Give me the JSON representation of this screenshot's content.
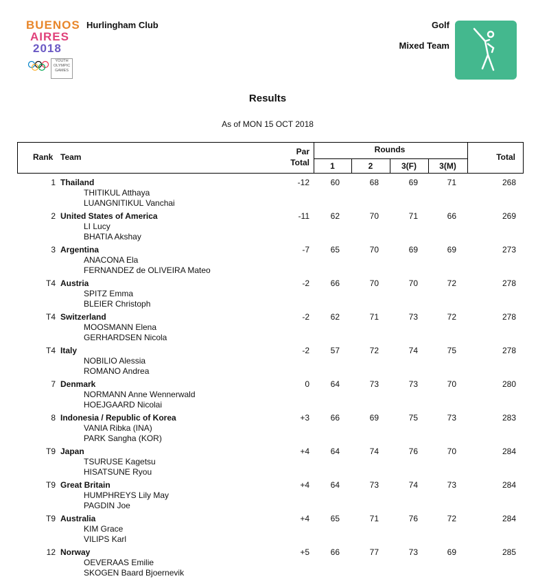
{
  "header": {
    "logo": {
      "line1": "BUENOS",
      "line2": "AIRES",
      "line3": "2018",
      "tag": "YOUTH OLYMPIC GAMES"
    },
    "venue": "Hurlingham Club",
    "sport": "Golf",
    "event": "Mixed Team"
  },
  "title": "Results",
  "subtitle": "As of MON 15 OCT 2018",
  "table": {
    "columns": {
      "rank": "Rank",
      "team": "Team",
      "par": [
        "Par",
        "Total"
      ],
      "rounds": "Rounds",
      "round_names": [
        "1",
        "2",
        "3(F)",
        "3(M)"
      ],
      "total": "Total"
    },
    "rows": [
      {
        "rank": "1",
        "team": "Thailand",
        "players": [
          "THITIKUL Atthaya",
          "LUANGNITIKUL Vanchai"
        ],
        "par": "-12",
        "rounds": [
          60,
          68,
          69,
          71
        ],
        "total": 268
      },
      {
        "rank": "2",
        "team": "United States of America",
        "players": [
          "LI Lucy",
          "BHATIA Akshay"
        ],
        "par": "-11",
        "rounds": [
          62,
          70,
          71,
          66
        ],
        "total": 269
      },
      {
        "rank": "3",
        "team": "Argentina",
        "players": [
          "ANACONA Ela",
          "FERNANDEZ de OLIVEIRA Mateo"
        ],
        "par": "-7",
        "rounds": [
          65,
          70,
          69,
          69
        ],
        "total": 273
      },
      {
        "rank": "T4",
        "team": "Austria",
        "players": [
          "SPITZ Emma",
          "BLEIER Christoph"
        ],
        "par": "-2",
        "rounds": [
          66,
          70,
          70,
          72
        ],
        "total": 278
      },
      {
        "rank": "T4",
        "team": "Switzerland",
        "players": [
          "MOOSMANN Elena",
          "GERHARDSEN Nicola"
        ],
        "par": "-2",
        "rounds": [
          62,
          71,
          73,
          72
        ],
        "total": 278
      },
      {
        "rank": "T4",
        "team": "Italy",
        "players": [
          "NOBILIO Alessia",
          "ROMANO Andrea"
        ],
        "par": "-2",
        "rounds": [
          57,
          72,
          74,
          75
        ],
        "total": 278
      },
      {
        "rank": "7",
        "team": "Denmark",
        "players": [
          "NORMANN Anne Wennerwald",
          "HOEJGAARD Nicolai"
        ],
        "par": "0",
        "rounds": [
          64,
          73,
          73,
          70
        ],
        "total": 280
      },
      {
        "rank": "8",
        "team": "Indonesia / Republic of Korea",
        "players": [
          "VANIA Ribka (INA)",
          "PARK Sangha (KOR)"
        ],
        "par": "+3",
        "rounds": [
          66,
          69,
          75,
          73
        ],
        "total": 283
      },
      {
        "rank": "T9",
        "team": "Japan",
        "players": [
          "TSURUSE Kagetsu",
          "HISATSUNE Ryou"
        ],
        "par": "+4",
        "rounds": [
          64,
          74,
          76,
          70
        ],
        "total": 284
      },
      {
        "rank": "T9",
        "team": "Great Britain",
        "players": [
          "HUMPHREYS Lily May",
          "PAGDIN Joe"
        ],
        "par": "+4",
        "rounds": [
          64,
          73,
          74,
          73
        ],
        "total": 284
      },
      {
        "rank": "T9",
        "team": "Australia",
        "players": [
          "KIM Grace",
          "VILIPS Karl"
        ],
        "par": "+4",
        "rounds": [
          65,
          71,
          76,
          72
        ],
        "total": 284
      },
      {
        "rank": "12",
        "team": "Norway",
        "players": [
          "OEVERAAS Emilie",
          "SKOGEN Baard Bjoernevik"
        ],
        "par": "+5",
        "rounds": [
          66,
          77,
          73,
          69
        ],
        "total": 285
      }
    ]
  }
}
